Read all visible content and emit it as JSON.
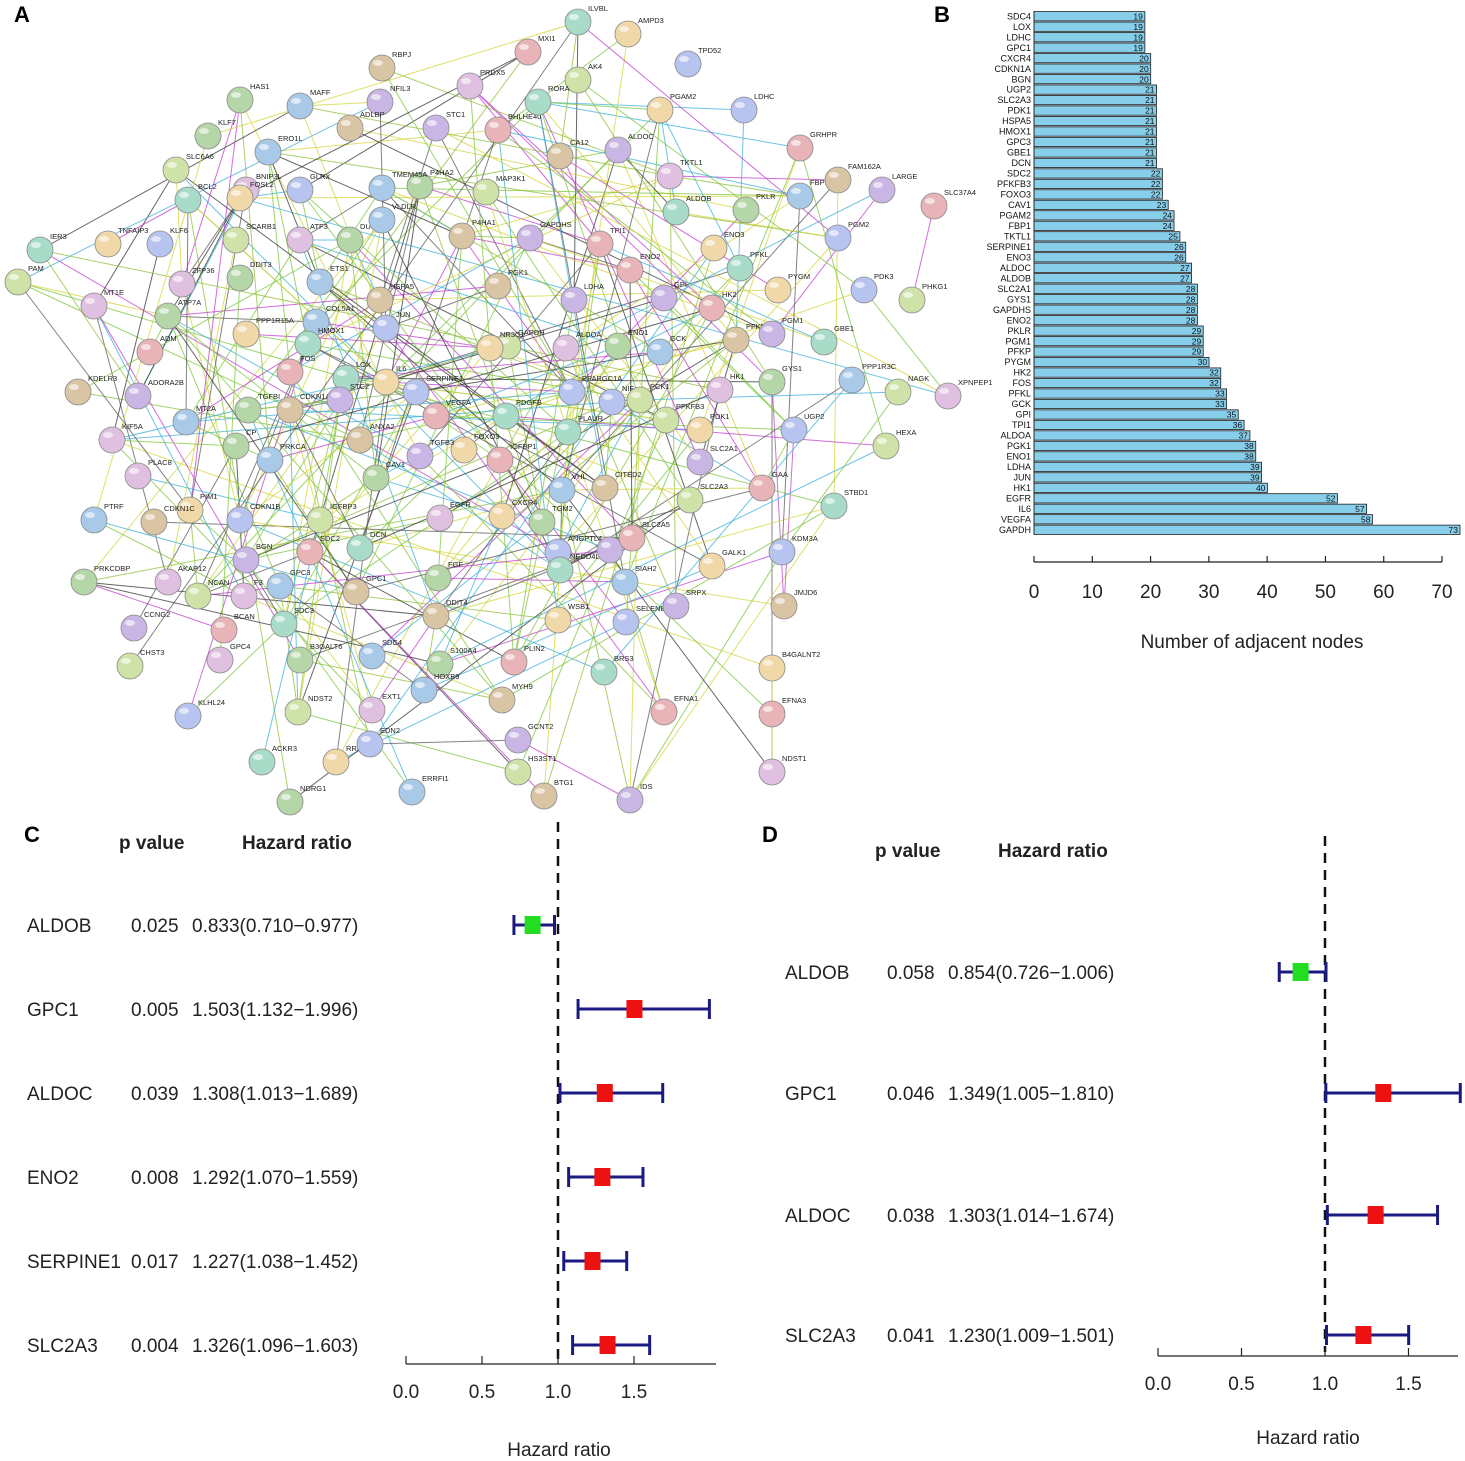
{
  "panels": {
    "a": "A",
    "b": "B",
    "c": "C",
    "d": "D"
  },
  "network": {
    "genes": [
      "HAS1",
      "MAFF",
      "RBPJ",
      "NFIL3",
      "MXI1",
      "ILVBL",
      "AMPD3",
      "TPD52",
      "AK4",
      "PRDX5",
      "KLF7",
      "ERO1L",
      "ADLBP",
      "STC1",
      "BHLHE40",
      "RORA",
      "PGAM2",
      "LDHC",
      "SLC6A6",
      "BNIP3L",
      "P4HA2",
      "TMEM45A",
      "CA12",
      "ALDOC",
      "GRHPR",
      "BCL2",
      "FOSL2",
      "GLRX",
      "MAP3K1",
      "TKTL1",
      "PKLR",
      "FBP1",
      "FAM162A",
      "LARGE",
      "SLC37A4",
      "IER3",
      "TNFAIP3",
      "KLF6",
      "SCARB1",
      "ATF3",
      "DUSP1",
      "VLDLR",
      "P4HA1",
      "GAPDHS",
      "TPI1",
      "ALDOB",
      "ENO3",
      "PGM2",
      "PAM",
      "ZFP36",
      "DDIT3",
      "ETS1",
      "PGK1",
      "LDHA",
      "ENO2",
      "PFKL",
      "PYGM",
      "PDK3",
      "PHKG1",
      "MT1E",
      "ATP7A",
      "COL5A1",
      "HSPA5",
      "GPI",
      "HK2",
      "GBE1",
      "PPP1R15A",
      "JUN",
      "GAPDH",
      "ALDOA",
      "ENO1",
      "GCK",
      "PFKP",
      "PGM1",
      "ADM",
      "HMOX1",
      "NR3C1",
      "PPARGC1A",
      "PCK1",
      "HK1",
      "GYS1",
      "PPP1R3C",
      "KDELR3",
      "ADORA2B",
      "FOS",
      "LOX",
      "IL6",
      "SERPINE1",
      "NAGK",
      "XPNPEP1",
      "TGFBI",
      "MT2A",
      "CDKN1A",
      "STC2",
      "VEGFA",
      "PDGFB",
      "FOXO3",
      "NIF",
      "PFKFB3",
      "KIF5A",
      "CP",
      "PRKCA",
      "ANXA2",
      "TGFB3",
      "IGFBP1",
      "PLAUR",
      "PDK1",
      "UGP2",
      "HEXA",
      "PLAC8",
      "CAV1",
      "VHL",
      "CITED2",
      "SLC2A1",
      "GAA",
      "STBD1",
      "PIM1",
      "CDKN1B",
      "IGFBP3",
      "EGFR",
      "TGM2",
      "PTRF",
      "CDKN1C",
      "BGN",
      "SDC2",
      "DCN",
      "CXCR4",
      "ANGPTL4",
      "SLC2A3",
      "AKAP12",
      "PRKCDBP",
      "GPC3",
      "GPC1",
      "IRS2",
      "SLC2A5",
      "NEDD4L",
      "GALK1",
      "KDM3A",
      "NCAN",
      "F3",
      "FGF",
      "SIAH2",
      "JMJD6",
      "CCNG2",
      "BCAN",
      "SDC3",
      "WSB1",
      "SELENBP1",
      "CHST3",
      "GPC4",
      "B3GALT6",
      "SDC4",
      "DDIT4",
      "SRPX",
      "PLIN2",
      "BRS3",
      "B4GALNT2",
      "KLHL24",
      "NDST2",
      "EXT1",
      "S100A4",
      "HOXB9",
      "MYH9",
      "GCNT2",
      "EFNA1",
      "ACKR3",
      "RRAGD",
      "EDN2",
      "HS3ST1",
      "NDST1",
      "NDRG1",
      "ERRFI1",
      "BTG1",
      "IDS",
      "EFNA3",
      "ZNF292",
      "PNRC1"
    ]
  },
  "chart_data": [
    {
      "id": "B",
      "type": "bar",
      "orientation": "horizontal",
      "categories": [
        "SDC4",
        "LOX",
        "LDHC",
        "GPC1",
        "CXCR4",
        "CDKN1A",
        "BGN",
        "UGP2",
        "SLC2A3",
        "PDK1",
        "HSPA5",
        "HMOX1",
        "GPC3",
        "GBE1",
        "DCN",
        "SDC2",
        "PFKFB3",
        "FOXO3",
        "CAV1",
        "PGAM2",
        "FBP1",
        "TKTL1",
        "SERPINE1",
        "ENO3",
        "ALDOC",
        "ALDOB",
        "SLC2A1",
        "GYS1",
        "GAPDHS",
        "ENO2",
        "PKLR",
        "PGM1",
        "PFKP",
        "PYGM",
        "HK2",
        "FOS",
        "PFKL",
        "GCK",
        "GPI",
        "TPI1",
        "ALDOA",
        "PGK1",
        "ENO1",
        "LDHA",
        "JUN",
        "HK1",
        "EGFR",
        "IL6",
        "VEGFA",
        "GAPDH"
      ],
      "values": [
        19,
        19,
        19,
        19,
        20,
        20,
        20,
        21,
        21,
        21,
        21,
        21,
        21,
        21,
        21,
        22,
        22,
        22,
        23,
        24,
        24,
        25,
        26,
        26,
        27,
        27,
        28,
        28,
        28,
        28,
        29,
        29,
        29,
        30,
        32,
        32,
        33,
        33,
        35,
        36,
        37,
        38,
        38,
        39,
        39,
        40,
        52,
        57,
        58,
        73
      ],
      "value_labels": [
        "19",
        "19",
        "19",
        "19",
        "20",
        "20",
        "20",
        "21",
        "21",
        "21",
        "21",
        "21",
        "21",
        "21",
        "21",
        "22",
        "22",
        "22",
        "23",
        "24",
        "24",
        "25",
        "26",
        "26",
        "27",
        "27",
        "28",
        "28",
        "28",
        "28",
        "29",
        "29",
        "29",
        "30",
        "32",
        "32",
        "33",
        "33",
        "35",
        "36",
        "37",
        "38",
        "38",
        "39",
        "39",
        "40",
        "52",
        "57",
        "58",
        "73"
      ],
      "xlabel": "Number of adjacent nodes",
      "xlim": [
        0,
        73
      ],
      "ticks": [
        0,
        10,
        20,
        30,
        40,
        50,
        60,
        70
      ],
      "tick_labels": [
        "0",
        "10",
        "20",
        "30",
        "40",
        "50",
        "60",
        "70"
      ],
      "bar_color": "#87ceeb"
    },
    {
      "id": "C",
      "type": "forest",
      "headers": {
        "p": "p value",
        "hr": "Hazard ratio"
      },
      "rows": [
        {
          "gene": "ALDOB",
          "p": "0.025",
          "hr_text": "0.833(0.710−0.977)",
          "hr": 0.833,
          "lo": 0.71,
          "hi": 0.977,
          "color": "#22dd22"
        },
        {
          "gene": "GPC1",
          "p": "0.005",
          "hr_text": "1.503(1.132−1.996)",
          "hr": 1.503,
          "lo": 1.132,
          "hi": 1.996,
          "color": "#ee1111"
        },
        {
          "gene": "ALDOC",
          "p": "0.039",
          "hr_text": "1.308(1.013−1.689)",
          "hr": 1.308,
          "lo": 1.013,
          "hi": 1.689,
          "color": "#ee1111"
        },
        {
          "gene": "ENO2",
          "p": "0.008",
          "hr_text": "1.292(1.070−1.559)",
          "hr": 1.292,
          "lo": 1.07,
          "hi": 1.559,
          "color": "#ee1111"
        },
        {
          "gene": "SERPINE1",
          "p": "0.017",
          "hr_text": "1.227(1.038−1.452)",
          "hr": 1.227,
          "lo": 1.038,
          "hi": 1.452,
          "color": "#ee1111"
        },
        {
          "gene": "SLC2A3",
          "p": "0.004",
          "hr_text": "1.326(1.096−1.603)",
          "hr": 1.326,
          "lo": 1.096,
          "hi": 1.603,
          "color": "#ee1111"
        }
      ],
      "xlim": [
        0,
        2.0
      ],
      "ref_line": 1.0,
      "ticks": [
        0.0,
        0.5,
        1.0,
        1.5
      ],
      "tick_labels": [
        "0.0",
        "0.5",
        "1.0",
        "1.5"
      ],
      "xlabel": "Hazard ratio",
      "ci_color": "#1a1a80"
    },
    {
      "id": "D",
      "type": "forest",
      "headers": {
        "p": "p value",
        "hr": "Hazard ratio"
      },
      "rows": [
        {
          "gene": "ALDOB",
          "p": "0.058",
          "hr_text": "0.854(0.726−1.006)",
          "hr": 0.854,
          "lo": 0.726,
          "hi": 1.006,
          "color": "#22dd22"
        },
        {
          "gene": "GPC1",
          "p": "0.046",
          "hr_text": "1.349(1.005−1.810)",
          "hr": 1.349,
          "lo": 1.005,
          "hi": 1.81,
          "color": "#ee1111"
        },
        {
          "gene": "ALDOC",
          "p": "0.038",
          "hr_text": "1.303(1.014−1.674)",
          "hr": 1.303,
          "lo": 1.014,
          "hi": 1.674,
          "color": "#ee1111"
        },
        {
          "gene": "SLC2A3",
          "p": "0.041",
          "hr_text": "1.230(1.009−1.501)",
          "hr": 1.23,
          "lo": 1.009,
          "hi": 1.501,
          "color": "#ee1111"
        }
      ],
      "xlim": [
        0,
        1.81
      ],
      "ref_line": 1.0,
      "ticks": [
        0.0,
        0.5,
        1.0,
        1.5
      ],
      "tick_labels": [
        "0.0",
        "0.5",
        "1.0",
        "1.5"
      ],
      "xlabel": "Hazard ratio",
      "ci_color": "#1a1a80"
    }
  ]
}
